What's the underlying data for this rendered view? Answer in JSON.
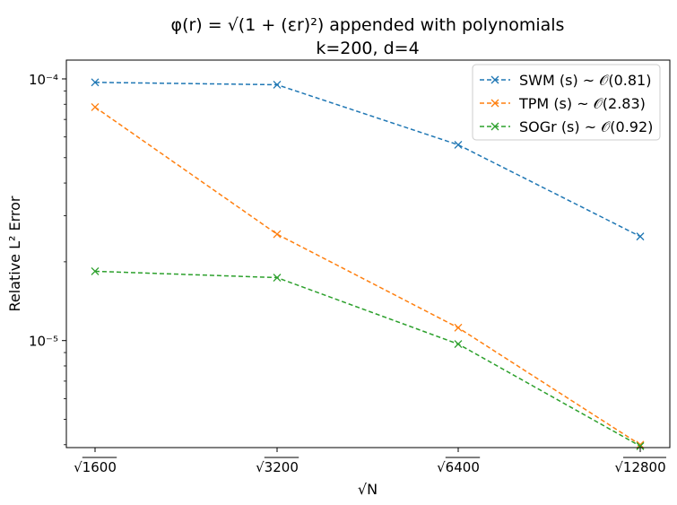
{
  "chart_data": {
    "type": "line",
    "title": "φ(r) = √(1 + (εr)²) appended with polynomials",
    "subtitle": "k=200, d=4",
    "xlabel": "√N",
    "ylabel": "Relative L² Error",
    "yscale": "log",
    "ylim": [
      3.9e-06,
      0.000118
    ],
    "grid": false,
    "legend_position": "top-right",
    "categories": [
      "√1600",
      "√3200",
      "√6400",
      "√12800"
    ],
    "y_tick_labels": [
      "10⁻⁴",
      "10⁻⁵"
    ],
    "series": [
      {
        "name": "SWM (s) ~ 𝒪(0.81)",
        "color": "#1f77b4",
        "marker": "x",
        "linestyle": "dashed",
        "values": [
          9.7e-05,
          9.5e-05,
          5.6e-05,
          2.5e-05
        ]
      },
      {
        "name": "TPM (s) ~ 𝒪(2.83)",
        "color": "#ff7f0e",
        "marker": "x",
        "linestyle": "dashed",
        "values": [
          7.8e-05,
          2.55e-05,
          1.12e-05,
          4e-06
        ]
      },
      {
        "name": "SOGr (s) ~ 𝒪(0.92)",
        "color": "#2ca02c",
        "marker": "x",
        "linestyle": "dashed",
        "values": [
          1.84e-05,
          1.74e-05,
          9.7e-06,
          3.95e-06
        ]
      }
    ]
  }
}
